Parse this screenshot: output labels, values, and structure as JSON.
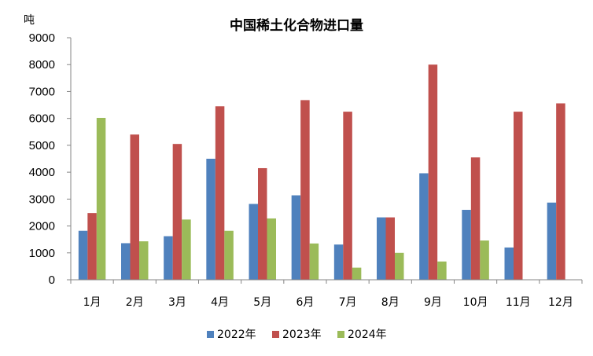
{
  "chart_data": {
    "type": "bar",
    "title": "中国稀土化合物进口量",
    "ylabel": "吨",
    "xlabel": "",
    "ylim": [
      0,
      9000
    ],
    "yticks": [
      0,
      1000,
      2000,
      3000,
      4000,
      5000,
      6000,
      7000,
      8000,
      9000
    ],
    "grid": false,
    "legend_position": "bottom",
    "categories": [
      "1月",
      "2月",
      "3月",
      "4月",
      "5月",
      "6月",
      "7月",
      "8月",
      "9月",
      "10月",
      "11月",
      "12月"
    ],
    "series": [
      {
        "name": "2022年",
        "color": "#4F81BD",
        "values": [
          1820,
          1360,
          1620,
          4500,
          2820,
          3140,
          1310,
          2320,
          3960,
          2600,
          1200,
          2870
        ]
      },
      {
        "name": "2023年",
        "color": "#C0504D",
        "values": [
          2480,
          5400,
          5050,
          6450,
          4150,
          6680,
          6250,
          2320,
          8000,
          4550,
          6250,
          6560
        ]
      },
      {
        "name": "2024年",
        "color": "#9BBB59",
        "values": [
          6020,
          1430,
          2240,
          1820,
          2280,
          1350,
          450,
          1000,
          680,
          1460,
          null,
          null
        ]
      }
    ]
  }
}
